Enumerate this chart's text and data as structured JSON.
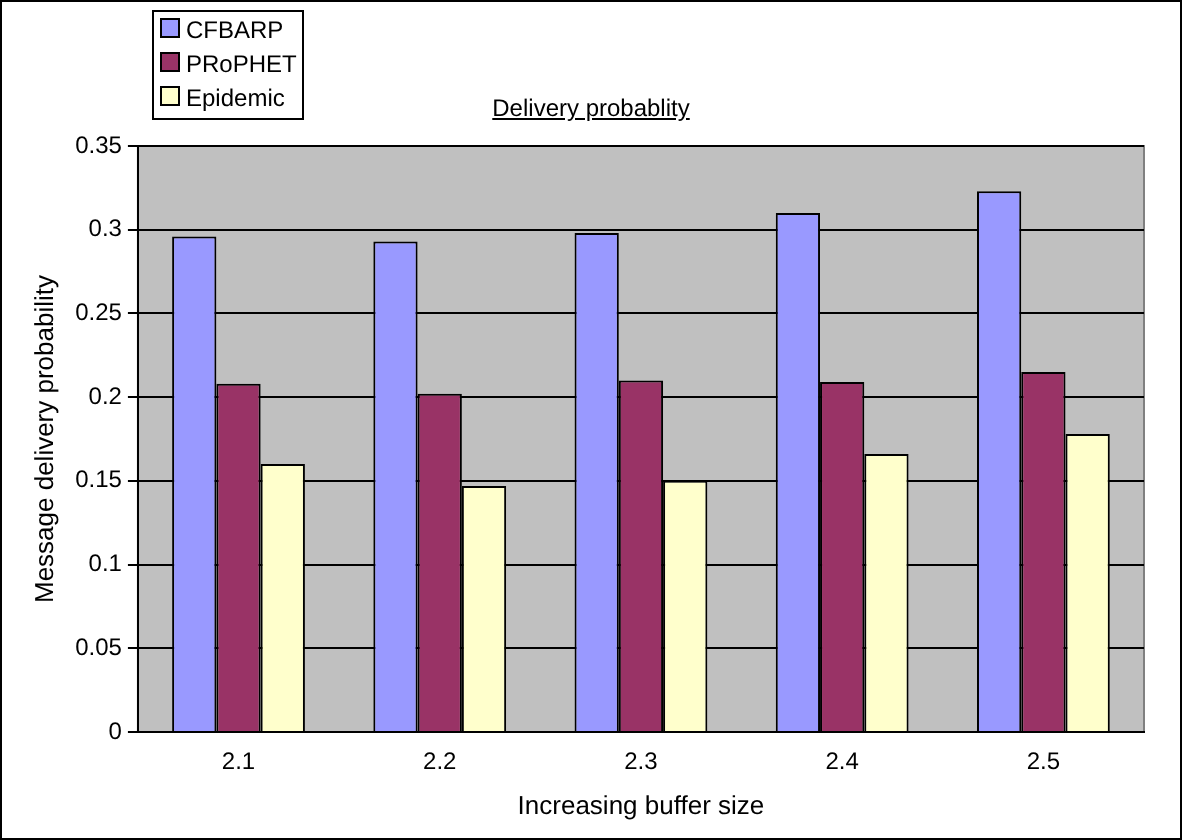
{
  "chart_data": {
    "type": "bar",
    "title": "Delivery probablity",
    "xlabel": "Increasing buffer size",
    "ylabel": "Message delivery probability",
    "categories": [
      "2.1",
      "2.2",
      "2.3",
      "2.4",
      "2.5"
    ],
    "series": [
      {
        "name": "CFBARP",
        "color": "#9999ff",
        "values": [
          0.296,
          0.293,
          0.298,
          0.31,
          0.323
        ]
      },
      {
        "name": "PRoPHET",
        "color": "#993366",
        "values": [
          0.208,
          0.202,
          0.21,
          0.209,
          0.215
        ]
      },
      {
        "name": "Epidemic",
        "color": "#ffffcc",
        "values": [
          0.16,
          0.147,
          0.15,
          0.166,
          0.178
        ]
      }
    ],
    "ylim": [
      0,
      0.35
    ],
    "yticks": [
      0,
      0.05,
      0.1,
      0.15,
      0.2,
      0.25,
      0.3,
      0.35
    ],
    "grid": "y",
    "legend": "top left"
  }
}
